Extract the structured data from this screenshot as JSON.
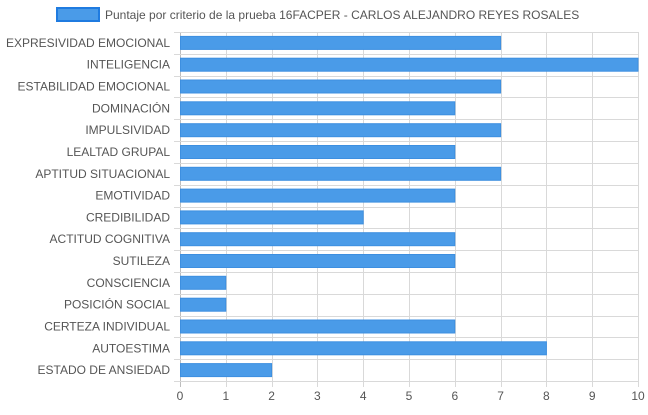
{
  "chart_data": {
    "type": "bar",
    "orientation": "horizontal",
    "categories": [
      "EXPRESIVIDAD EMOCIONAL",
      "INTELIGENCIA",
      "ESTABILIDAD EMOCIONAL",
      "DOMINACIÓN",
      "IMPULSIVIDAD",
      "LEALTAD GRUPAL",
      "APTITUD SITUACIONAL",
      "EMOTIVIDAD",
      "CREDIBILIDAD",
      "ACTITUD COGNITIVA",
      "SUTILEZA",
      "CONSCIENCIA",
      "POSICIÓN SOCIAL",
      "CERTEZA INDIVIDUAL",
      "AUTOESTIMA",
      "ESTADO DE ANSIEDAD"
    ],
    "series": [
      {
        "name": "Puntaje por criterio de la prueba 16FACPER - CARLOS ALEJANDRO REYES ROSALES",
        "values": [
          7,
          10,
          7,
          6,
          7,
          6,
          7,
          6,
          4,
          6,
          6,
          1,
          1,
          6,
          8,
          2
        ]
      }
    ],
    "xlim": [
      0,
      10
    ],
    "xticks": [
      "0",
      "1",
      "2",
      "3",
      "4",
      "5",
      "6",
      "7",
      "8",
      "9",
      "10"
    ],
    "grid": true,
    "legend_position": "top",
    "colors": {
      "bar_fill": "#4a9be8",
      "bar_stroke": "#3d8fe0",
      "legend_stroke": "#1f7be0",
      "grid": "#d9d9d9",
      "text": "#555555"
    }
  }
}
